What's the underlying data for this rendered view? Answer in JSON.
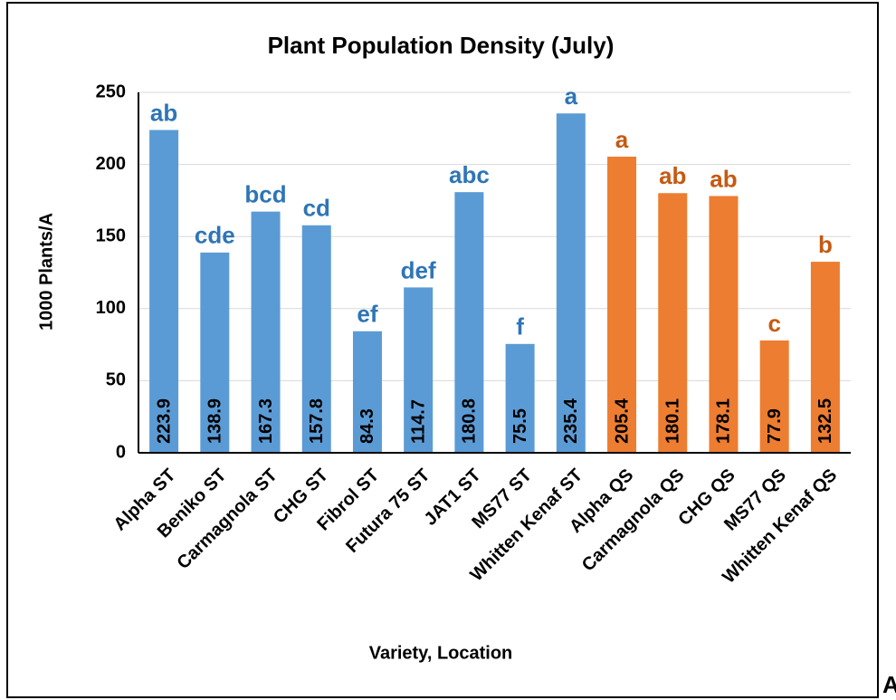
{
  "chart_data": {
    "type": "bar",
    "title": "Plant Population Density (July)",
    "ylabel": "1000 Plants/A",
    "xlabel": "Variety, Location",
    "categories": [
      "Alpha ST",
      "Beniko ST",
      "Carmagnola ST",
      "CHG ST",
      "Fibrol ST",
      "Futura 75 ST",
      "JAT1 ST",
      "MS77 ST",
      "Whitten Kenaf ST",
      "Alpha QS",
      "Carmagnola QS",
      "CHG QS",
      "MS77 QS",
      "Whitten Kenaf QS"
    ],
    "values": [
      223.9,
      138.9,
      167.3,
      157.8,
      84.3,
      114.7,
      180.8,
      75.5,
      235.4,
      205.4,
      180.1,
      178.1,
      77.9,
      132.5
    ],
    "annotations": [
      "ab",
      "cde",
      "bcd",
      "cd",
      "ef",
      "def",
      "abc",
      "f",
      "a",
      "a",
      "ab",
      "ab",
      "c",
      "b"
    ],
    "colors": [
      "#5b9bd5",
      "#5b9bd5",
      "#5b9bd5",
      "#5b9bd5",
      "#5b9bd5",
      "#5b9bd5",
      "#5b9bd5",
      "#5b9bd5",
      "#5b9bd5",
      "#ed7d31",
      "#ed7d31",
      "#ed7d31",
      "#ed7d31",
      "#ed7d31"
    ],
    "annotation_colors": [
      "#2e75b6",
      "#2e75b6",
      "#2e75b6",
      "#2e75b6",
      "#2e75b6",
      "#2e75b6",
      "#2e75b6",
      "#2e75b6",
      "#2e75b6",
      "#c55a11",
      "#c55a11",
      "#c55a11",
      "#c55a11",
      "#c55a11"
    ],
    "ylim": [
      0,
      250
    ],
    "yticks": [
      0,
      50,
      100,
      150,
      200,
      250
    ],
    "grid": true
  },
  "panel_label": "A"
}
